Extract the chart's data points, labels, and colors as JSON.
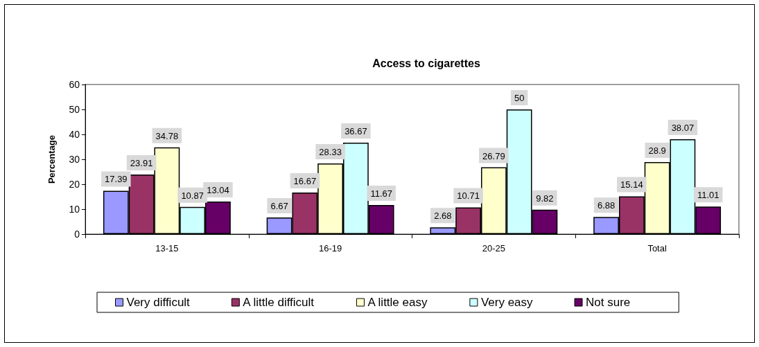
{
  "chart_data": {
    "type": "bar",
    "title": "Access to cigarettes",
    "ylabel": "Percentage",
    "categories": [
      "13-15",
      "16-19",
      "20-25",
      "Total"
    ],
    "series": [
      {
        "name": "Very difficult",
        "color": "#9999ff",
        "values": [
          17.39,
          6.67,
          2.68,
          6.88
        ]
      },
      {
        "name": "A little difficult",
        "color": "#993366",
        "values": [
          23.91,
          16.67,
          10.71,
          15.14
        ]
      },
      {
        "name": "A little easy",
        "color": "#ffffcc",
        "values": [
          34.78,
          28.33,
          26.79,
          28.9
        ]
      },
      {
        "name": "Very easy",
        "color": "#ccffff",
        "values": [
          10.87,
          36.67,
          50,
          38.07
        ]
      },
      {
        "name": "Not sure",
        "color": "#660066",
        "values": [
          13.04,
          11.67,
          9.82,
          11.01
        ]
      }
    ],
    "ylim": [
      0,
      60
    ],
    "yticks": [
      0,
      10,
      20,
      30,
      40,
      50,
      60
    ],
    "legend": "bottom",
    "data_labels": true
  }
}
